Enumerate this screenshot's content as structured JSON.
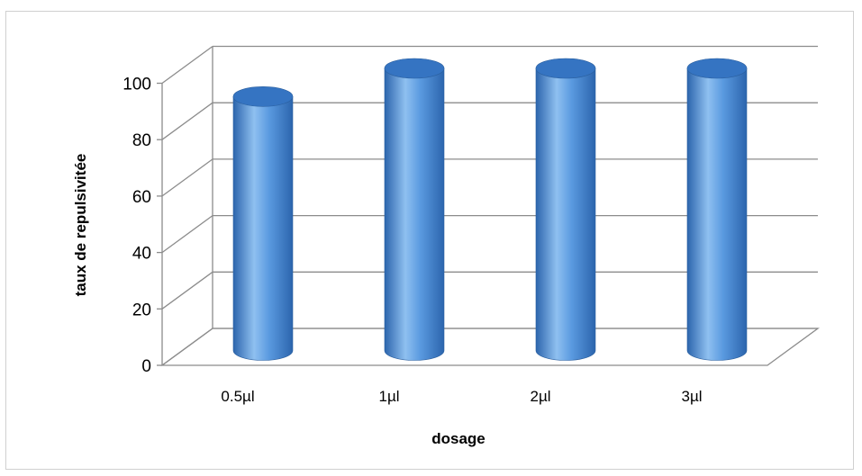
{
  "chart_data": {
    "type": "bar",
    "style": "3d-cylinder",
    "categories": [
      "0.5µl",
      "1µl",
      "2µl",
      "3µl"
    ],
    "values": [
      90,
      100,
      100,
      100
    ],
    "xlabel": "dosage",
    "ylabel": "taux de repulsivitée",
    "ylim": [
      0,
      100
    ],
    "yticks": [
      "0",
      "20",
      "40",
      "60",
      "80",
      "100"
    ],
    "grid": true,
    "legend": "none",
    "colors": {
      "bar": "#4f8fd8",
      "bar_dark": "#2c65ad",
      "bar_light": "#8fc0f0",
      "top": "#3574c2",
      "grid": "#8c8c8c"
    }
  }
}
